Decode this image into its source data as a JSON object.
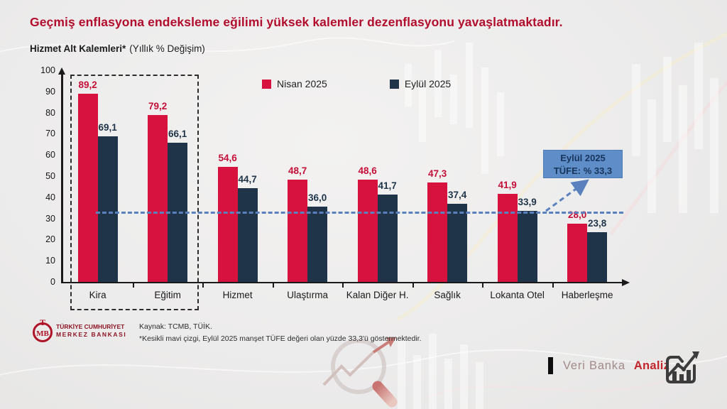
{
  "title": "Geçmiş enflasyona endeksleme eğilimi yüksek kalemler dezenflasyonu yavaşlatmaktadır.",
  "subtitle": {
    "bold": "Hizmet Alt Kalemleri*",
    "rest": "(Yıllık % Değişim)"
  },
  "legend": [
    {
      "label": "Nisan 2025",
      "color": "#d8123e"
    },
    {
      "label": "Eylül 2025",
      "color": "#1f3449"
    }
  ],
  "chart_data": {
    "type": "bar",
    "categories": [
      "Kira",
      "Eğitim",
      "Hizmet",
      "Ulaştırma",
      "Kalan Diğer H.",
      "Sağlık",
      "Lokanta Otel",
      "Haberleşme"
    ],
    "series": [
      {
        "name": "Nisan 2025",
        "color": "#d8123e",
        "label_color": "#c40f38",
        "values": [
          89.2,
          79.2,
          54.6,
          48.7,
          48.6,
          47.3,
          41.9,
          28.0
        ]
      },
      {
        "name": "Eylül 2025",
        "color": "#1f3449",
        "label_color": "#1f3449",
        "values": [
          69.1,
          66.1,
          44.7,
          36.0,
          41.7,
          37.4,
          33.9,
          23.8
        ]
      }
    ],
    "ylabel": "",
    "xlabel": "",
    "ylim": [
      0,
      100
    ],
    "ytick_step": 10,
    "grid": false,
    "legend_position": "top",
    "reference_line": {
      "value": 33.3,
      "color": "#5a81bd",
      "style": "dashed"
    },
    "highlighted_categories": [
      "Kira",
      "Eğitim"
    ]
  },
  "annotation_box": {
    "line1": "Eylül 2025",
    "line2": "TÜFE: % 33,3",
    "bg": "#5e8dc8",
    "text_color": "#17365d"
  },
  "footer": {
    "logo_monogram_top": "T",
    "logo_monogram_main": "MB",
    "logo_line1": "TÜRKİYE CUMHURİYET",
    "logo_line2": "MERKEZ BANKASI",
    "source": "Kaynak: TCMB, TÜİK.",
    "note": "*Kesikli mavi çizgi, Eylül 2025 manşet TÜFE değeri olan yüzde 33,3'ü göstermektedir."
  },
  "branding": {
    "text1": "Veri Banka",
    "text2": "Analiz"
  }
}
